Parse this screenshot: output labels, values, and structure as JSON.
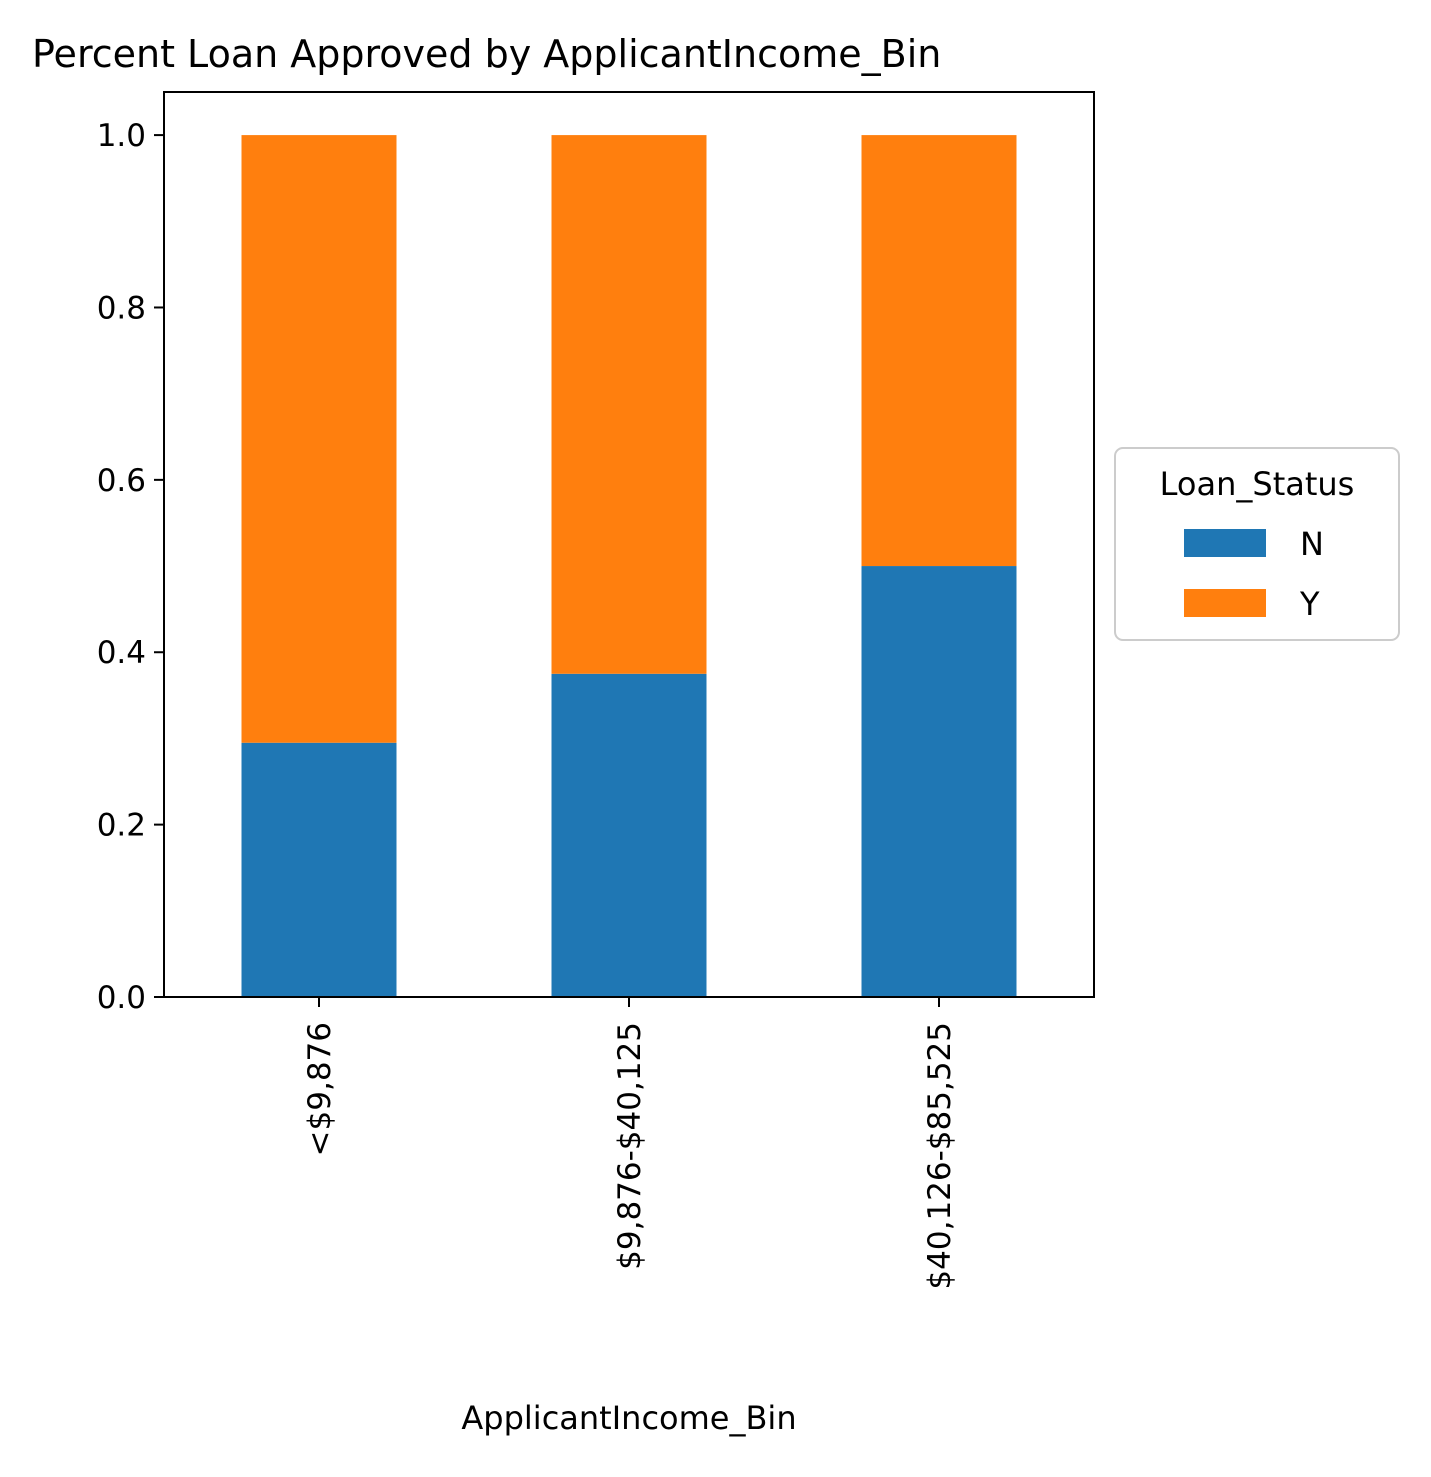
{
  "chart_data": {
    "type": "bar",
    "stacked": true,
    "title": "Percent Loan Approved by ApplicantIncome_Bin",
    "xlabel": "ApplicantIncome_Bin",
    "ylabel": "",
    "categories": [
      "<$9,876",
      "$9,876-$40,125",
      "$40,126-$85,525"
    ],
    "series": [
      {
        "name": "N",
        "values": [
          0.295,
          0.375,
          0.5
        ],
        "color": "#1f77b4"
      },
      {
        "name": "Y",
        "values": [
          0.705,
          0.625,
          0.5
        ],
        "color": "#ff7f0e"
      }
    ],
    "ylim": [
      0,
      1.05
    ],
    "yticks": [
      0.0,
      0.2,
      0.4,
      0.6,
      0.8,
      1.0
    ],
    "ytick_labels": [
      "0.0",
      "0.2",
      "0.4",
      "0.6",
      "0.8",
      "1.0"
    ],
    "grid": false,
    "legend": {
      "title": "Loan_Status",
      "placement": "right, outside plot area"
    }
  }
}
